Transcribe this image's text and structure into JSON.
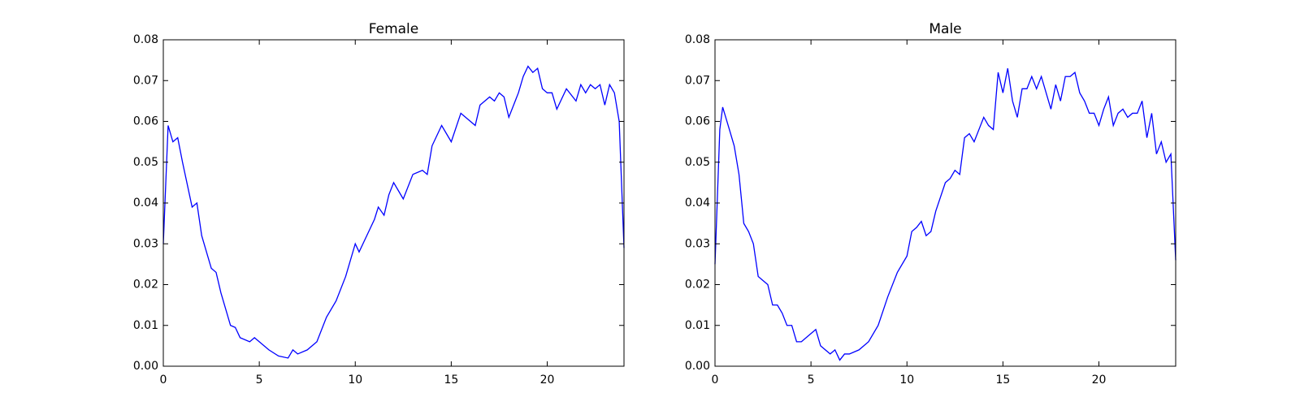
{
  "chart_data": [
    {
      "type": "line",
      "title": "Female",
      "color": "#0000ff",
      "x": [
        0,
        0.25,
        0.5,
        0.75,
        1,
        1.5,
        1.75,
        2,
        2.5,
        2.75,
        3,
        3.5,
        3.75,
        4,
        4.5,
        4.75,
        5,
        5.5,
        6,
        6.5,
        6.75,
        7,
        7.5,
        8,
        8.5,
        9,
        9.5,
        10,
        10.2,
        10.5,
        11,
        11.2,
        11.5,
        11.75,
        12,
        12.5,
        13,
        13.5,
        13.75,
        14,
        14.5,
        15,
        15.5,
        16,
        16.25,
        16.5,
        17,
        17.25,
        17.5,
        17.75,
        18,
        18.5,
        18.75,
        19,
        19.25,
        19.5,
        19.75,
        20,
        20.25,
        20.5,
        21,
        21.5,
        21.75,
        22,
        22.25,
        22.5,
        22.75,
        23,
        23.25,
        23.5,
        23.75,
        24
      ],
      "values": [
        0.03,
        0.059,
        0.055,
        0.056,
        0.05,
        0.039,
        0.04,
        0.032,
        0.024,
        0.023,
        0.018,
        0.01,
        0.0095,
        0.007,
        0.006,
        0.007,
        0.006,
        0.004,
        0.0025,
        0.002,
        0.004,
        0.003,
        0.004,
        0.006,
        0.012,
        0.016,
        0.022,
        0.03,
        0.028,
        0.031,
        0.036,
        0.039,
        0.037,
        0.042,
        0.045,
        0.041,
        0.047,
        0.048,
        0.047,
        0.054,
        0.059,
        0.055,
        0.062,
        0.06,
        0.059,
        0.064,
        0.066,
        0.065,
        0.067,
        0.066,
        0.061,
        0.067,
        0.071,
        0.0735,
        0.072,
        0.073,
        0.068,
        0.067,
        0.067,
        0.063,
        0.068,
        0.065,
        0.069,
        0.067,
        0.069,
        0.068,
        0.069,
        0.064,
        0.069,
        0.067,
        0.06,
        0.029
      ],
      "xlim": [
        0,
        24
      ],
      "xticks": [
        0,
        5,
        10,
        15,
        20
      ],
      "ylim": [
        0,
        0.08
      ],
      "yticks": [
        {
          "value": 0,
          "label": "0.00"
        },
        0.01,
        0.02,
        0.03,
        0.04,
        0.05,
        0.06,
        0.07,
        0.08
      ]
    },
    {
      "type": "line",
      "title": "Male",
      "color": "#0000ff",
      "x": [
        0,
        0.25,
        0.4,
        0.75,
        1,
        1.25,
        1.5,
        1.75,
        2,
        2.25,
        2.5,
        2.75,
        3,
        3.25,
        3.5,
        3.75,
        4,
        4.25,
        4.5,
        5,
        5.25,
        5.5,
        6,
        6.25,
        6.5,
        6.75,
        7,
        7.5,
        8,
        8.5,
        9,
        9.5,
        10,
        10.25,
        10.5,
        10.75,
        11,
        11.25,
        11.5,
        12,
        12.25,
        12.5,
        12.75,
        13,
        13.25,
        13.5,
        13.75,
        14,
        14.25,
        14.5,
        14.75,
        15,
        15.25,
        15.5,
        15.75,
        16,
        16.25,
        16.5,
        16.75,
        17,
        17.25,
        17.5,
        17.75,
        18,
        18.25,
        18.5,
        18.75,
        19,
        19.25,
        19.5,
        19.75,
        20,
        20.25,
        20.5,
        20.75,
        21,
        21.25,
        21.5,
        21.75,
        22,
        22.25,
        22.5,
        22.75,
        23,
        23.25,
        23.5,
        23.75,
        24
      ],
      "values": [
        0.025,
        0.058,
        0.0635,
        0.058,
        0.054,
        0.047,
        0.035,
        0.033,
        0.03,
        0.022,
        0.021,
        0.02,
        0.015,
        0.015,
        0.013,
        0.01,
        0.01,
        0.006,
        0.006,
        0.008,
        0.009,
        0.005,
        0.003,
        0.004,
        0.0015,
        0.003,
        0.003,
        0.004,
        0.006,
        0.01,
        0.017,
        0.023,
        0.027,
        0.033,
        0.034,
        0.0355,
        0.032,
        0.033,
        0.038,
        0.045,
        0.046,
        0.048,
        0.047,
        0.056,
        0.057,
        0.055,
        0.058,
        0.061,
        0.059,
        0.058,
        0.072,
        0.067,
        0.073,
        0.065,
        0.061,
        0.068,
        0.068,
        0.071,
        0.068,
        0.071,
        0.067,
        0.063,
        0.069,
        0.065,
        0.071,
        0.071,
        0.072,
        0.067,
        0.065,
        0.062,
        0.062,
        0.059,
        0.063,
        0.066,
        0.059,
        0.062,
        0.063,
        0.061,
        0.062,
        0.062,
        0.065,
        0.056,
        0.062,
        0.052,
        0.055,
        0.05,
        0.052,
        0.026
      ],
      "xlim": [
        0,
        24
      ],
      "xticks": [
        0,
        5,
        10,
        15,
        20
      ],
      "ylim": [
        0,
        0.08
      ],
      "yticks": [
        {
          "value": 0,
          "label": "0.00"
        },
        0.01,
        0.02,
        0.03,
        0.04,
        0.05,
        0.06,
        0.07,
        0.08
      ]
    }
  ]
}
